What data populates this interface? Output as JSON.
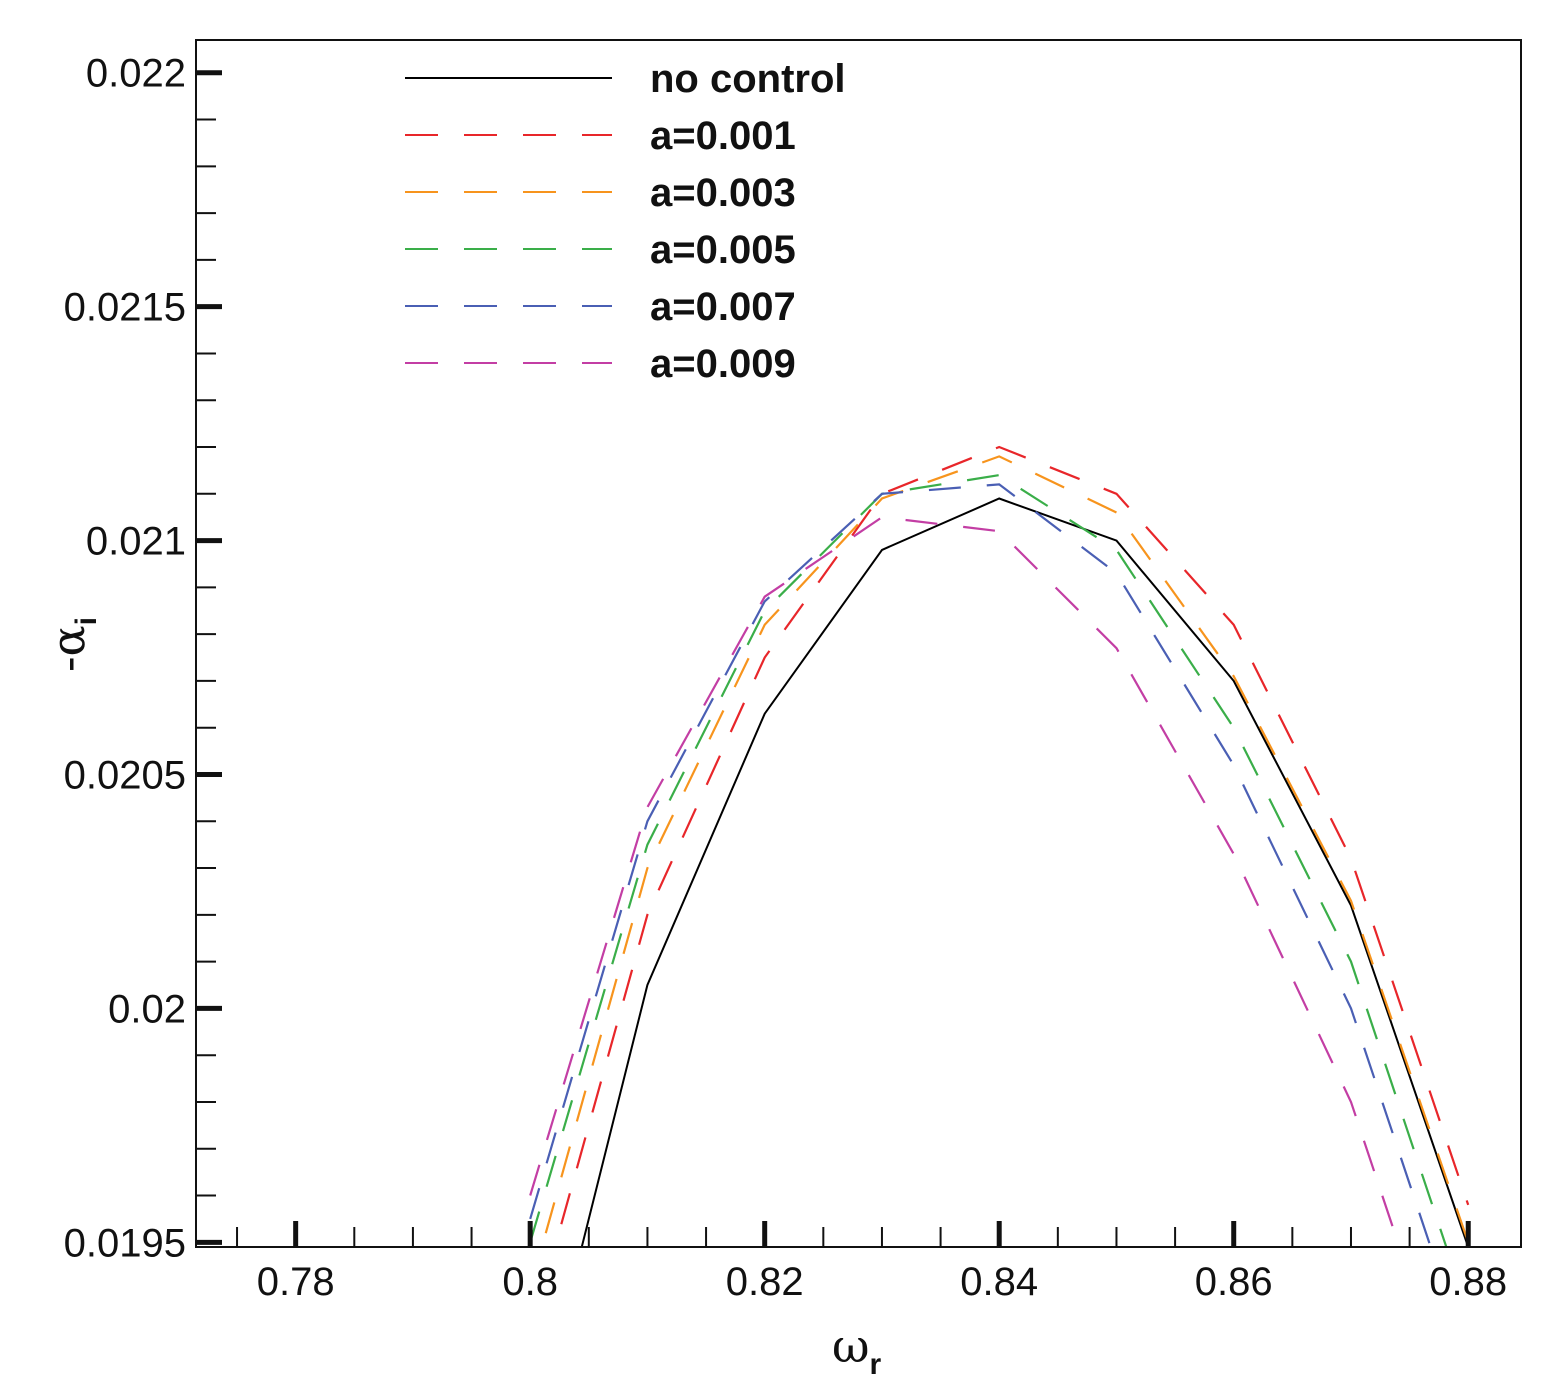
{
  "chart_data": {
    "type": "line",
    "title": "",
    "xlabel": {
      "symbol": "ω",
      "subscript": "r"
    },
    "ylabel": {
      "symbol": "-α",
      "subscript": "i"
    },
    "xlim": [
      0.7715,
      0.8845
    ],
    "ylim": [
      0.01949,
      0.02207
    ],
    "x_ticks": [
      0.78,
      0.8,
      0.82,
      0.84,
      0.86,
      0.88
    ],
    "x_tick_labels": [
      "0.78",
      "0.8",
      "0.82",
      "0.84",
      "0.86",
      "0.88"
    ],
    "x_minor_step": 0.005,
    "y_ticks": [
      0.0195,
      0.02,
      0.0205,
      0.021,
      0.0215,
      0.022
    ],
    "y_tick_labels": [
      "0.0195",
      "0.02",
      "0.0205",
      "0.021",
      "0.0215",
      "0.022"
    ],
    "y_minor_step": 0.0001,
    "grid": false,
    "legend_position": "top-left",
    "series": [
      {
        "name": "no control",
        "color": "#000000",
        "dash": "solid",
        "x": [
          0.8,
          0.81,
          0.82,
          0.83,
          0.84,
          0.85,
          0.86,
          0.87,
          0.88
        ],
        "y": [
          0.01905,
          0.02005,
          0.02063,
          0.02098,
          0.02109,
          0.021,
          0.0207,
          0.02022,
          0.01949
        ]
      },
      {
        "name": "a=0.001",
        "color": "#e8262a",
        "dash": "dashed",
        "x": [
          0.8,
          0.81,
          0.82,
          0.83,
          0.84,
          0.85,
          0.86,
          0.87,
          0.88
        ],
        "y": [
          0.0193,
          0.0202,
          0.02075,
          0.0211,
          0.0212,
          0.0211,
          0.02082,
          0.02032,
          0.01958
        ]
      },
      {
        "name": "a=0.003",
        "color": "#f7941d",
        "dash": "dashed",
        "x": [
          0.8,
          0.81,
          0.82,
          0.83,
          0.84,
          0.85,
          0.86,
          0.87,
          0.88
        ],
        "y": [
          0.0194,
          0.0203,
          0.02082,
          0.02109,
          0.02118,
          0.02106,
          0.02071,
          0.02023,
          0.0195
        ]
      },
      {
        "name": "a=0.005",
        "color": "#3aae49",
        "dash": "dashed",
        "x": [
          0.8,
          0.81,
          0.82,
          0.83,
          0.84,
          0.85,
          0.86,
          0.87,
          0.88
        ],
        "y": [
          0.0195,
          0.02035,
          0.02085,
          0.0211,
          0.02114,
          0.02098,
          0.0206,
          0.0201,
          0.01935
        ]
      },
      {
        "name": "a=0.007",
        "color": "#4a5fb4",
        "dash": "dashed",
        "x": [
          0.8,
          0.81,
          0.82,
          0.83,
          0.84,
          0.85,
          0.86,
          0.87,
          0.88
        ],
        "y": [
          0.01955,
          0.0204,
          0.02087,
          0.0211,
          0.02112,
          0.02093,
          0.02052,
          0.02,
          0.01925
        ]
      },
      {
        "name": "a=0.009",
        "color": "#c33ea4",
        "dash": "dashed",
        "x": [
          0.8,
          0.81,
          0.82,
          0.83,
          0.84,
          0.85,
          0.86,
          0.87,
          0.88
        ],
        "y": [
          0.0196,
          0.02043,
          0.02088,
          0.02105,
          0.02102,
          0.02077,
          0.02033,
          0.0198,
          0.01905
        ]
      }
    ]
  }
}
